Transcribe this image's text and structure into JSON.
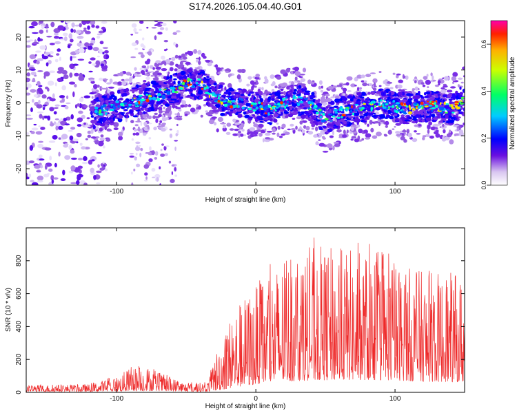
{
  "figure_title": "S174.2026.105.04.40.G01",
  "colors": {
    "snr_line": "#ee2a2a",
    "axis": "#000000"
  },
  "chart_data": [
    {
      "type": "heatmap",
      "name": "spectrogram",
      "title": "S174.2026.105.04.40.G01",
      "xlabel": "Height of straight line (km)",
      "ylabel": "Frequency (Hz)",
      "xlim": [
        -165,
        150
      ],
      "ylim": [
        -25,
        25
      ],
      "xticks": [
        -100,
        0,
        100
      ],
      "yticks": [
        -20,
        -10,
        0,
        10,
        20
      ],
      "ridge": {
        "x": [
          -115,
          -100,
          -80,
          -60,
          -50,
          -40,
          -30,
          -20,
          -10,
          0,
          10,
          20,
          30,
          40,
          50,
          60,
          70,
          80,
          90,
          100,
          110,
          120,
          130,
          140,
          150
        ],
        "freq": [
          -3,
          -1,
          1,
          4,
          6,
          6,
          2,
          0,
          0,
          -1,
          -2,
          0,
          1,
          -1,
          -5,
          -3,
          -2,
          -1,
          0,
          -1,
          -2,
          -1,
          -1,
          -2,
          1
        ]
      },
      "colorbar": {
        "label": "Normalized spectral amplitude",
        "range": [
          0.0,
          0.7
        ],
        "ticks": [
          "0.0",
          "0.2",
          "0.4",
          "0.6"
        ]
      }
    },
    {
      "type": "line",
      "name": "snr",
      "title": "",
      "xlabel": "Height of straight line (km)",
      "ylabel": "SNR (10 * v/v)",
      "xlim": [
        -165,
        150
      ],
      "ylim": [
        0,
        1000
      ],
      "xticks": [
        -100,
        0,
        100
      ],
      "yticks": [
        0,
        200,
        400,
        600,
        800
      ],
      "envelope": {
        "x": [
          -165,
          -120,
          -100,
          -90,
          -80,
          -70,
          -50,
          -35,
          -25,
          -15,
          -5,
          5,
          20,
          40,
          60,
          80,
          100,
          120,
          150
        ],
        "base": [
          20,
          20,
          25,
          35,
          40,
          30,
          20,
          20,
          60,
          120,
          170,
          220,
          260,
          290,
          300,
          300,
          290,
          260,
          250
        ],
        "peak": [
          45,
          50,
          100,
          150,
          170,
          120,
          60,
          60,
          350,
          520,
          620,
          700,
          820,
          900,
          880,
          870,
          800,
          740,
          720
        ]
      }
    }
  ]
}
